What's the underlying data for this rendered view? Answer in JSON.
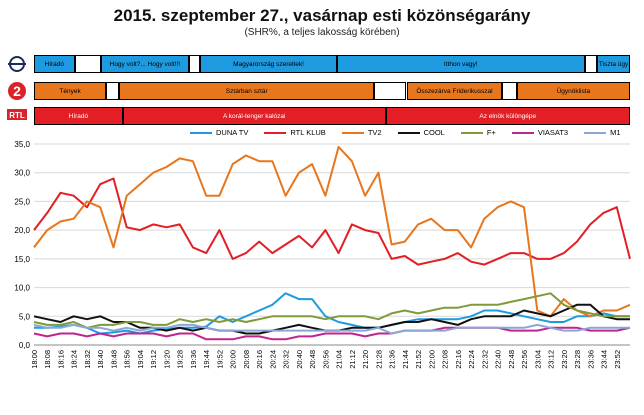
{
  "header": {
    "title": "2015. szeptember 27., vasárnap esti közönségarány",
    "subtitle": "(SHR%, a teljes lakosság körében)"
  },
  "channel_logos": [
    {
      "name": "m1-logo",
      "text": "",
      "color": "#1b2b5e"
    },
    {
      "name": "tv2-logo",
      "text": "2",
      "color": "#d8232a"
    },
    {
      "name": "rtl-klub-logo",
      "text": "RTL",
      "color": "#d8232a"
    }
  ],
  "schedules": [
    {
      "channel": "M1",
      "programs": [
        {
          "label": "Híradó",
          "color": "#1e9be0",
          "start": 0.0,
          "end": 0.068
        },
        {
          "label": "",
          "color": "#ffffff",
          "start": 0.068,
          "end": 0.112
        },
        {
          "label": "Hogy volt?... Hogy volt!!!",
          "color": "#1e9be0",
          "start": 0.112,
          "end": 0.26
        },
        {
          "label": "",
          "color": "#ffffff",
          "start": 0.26,
          "end": 0.279
        },
        {
          "label": "Magyarország szeretlek!",
          "color": "#1e9be0",
          "start": 0.279,
          "end": 0.508
        },
        {
          "label": "Itthon vagy!",
          "color": "#1e9be0",
          "start": 0.508,
          "end": 0.924
        },
        {
          "label": "",
          "color": "#ffffff",
          "start": 0.924,
          "end": 0.945
        },
        {
          "label": "Tiszta ügy",
          "color": "#1e9be0",
          "start": 0.945,
          "end": 1.0
        }
      ]
    },
    {
      "channel": "TV2",
      "programs": [
        {
          "label": "Tények",
          "color": "#e8761d",
          "start": 0.0,
          "end": 0.121
        },
        {
          "label": "",
          "color": "#ffffff",
          "start": 0.121,
          "end": 0.143
        },
        {
          "label": "Sztárban sztár",
          "color": "#e8761d",
          "start": 0.143,
          "end": 0.571
        },
        {
          "label": "",
          "color": "#ffffff",
          "start": 0.571,
          "end": 0.625
        },
        {
          "label": "Összezárva Friderikusszal",
          "color": "#e8761d",
          "start": 0.625,
          "end": 0.786
        },
        {
          "label": "",
          "color": "#ffffff",
          "start": 0.786,
          "end": 0.81
        },
        {
          "label": "Ügynöklista",
          "color": "#e8761d",
          "start": 0.81,
          "end": 1.0
        }
      ]
    },
    {
      "channel": "RTL Klub",
      "programs": [
        {
          "label": "Híradó",
          "color": "#e31e24",
          "start": 0.0,
          "end": 0.149
        },
        {
          "label": "A korál-tenger kalózai",
          "color": "#e31e24",
          "start": 0.149,
          "end": 0.59
        },
        {
          "label": "Az elnök különgépe",
          "color": "#e31e24",
          "start": 0.59,
          "end": 1.0
        }
      ]
    }
  ],
  "chart_data": {
    "type": "line",
    "ylim": [
      0,
      35
    ],
    "yticks": [
      "0,0",
      "5,0",
      "10,0",
      "15,0",
      "20,0",
      "25,0",
      "30,0",
      "35,0"
    ],
    "grid": true,
    "legend_position": "top",
    "x": [
      "18:00",
      "18:08",
      "18:16",
      "18:24",
      "18:32",
      "18:40",
      "18:48",
      "18:56",
      "19:04",
      "19:12",
      "19:20",
      "19:28",
      "19:36",
      "19:44",
      "19:52",
      "20:00",
      "20:08",
      "20:16",
      "20:24",
      "20:32",
      "20:40",
      "20:48",
      "20:56",
      "21:04",
      "21:12",
      "21:20",
      "21:28",
      "21:36",
      "21:44",
      "21:52",
      "22:00",
      "22:08",
      "22:16",
      "22:24",
      "22:32",
      "22:40",
      "22:48",
      "22:56",
      "23:04",
      "23:12",
      "23:20",
      "23:28",
      "23:36",
      "23:44",
      "23:52",
      "23:59"
    ],
    "xticks": [
      "18:00",
      "18:08",
      "18:16",
      "18:24",
      "18:32",
      "18:40",
      "18:48",
      "18:56",
      "19:04",
      "19:12",
      "19:20",
      "19:28",
      "19:36",
      "19:44",
      "19:52",
      "20:00",
      "20:08",
      "20:16",
      "20:24",
      "20:32",
      "20:40",
      "20:48",
      "20:56",
      "21:04",
      "21:12",
      "21:20",
      "21:28",
      "21:36",
      "21:44",
      "21:52",
      "22:00",
      "22:08",
      "22:16",
      "22:24",
      "22:32",
      "22:40",
      "22:48",
      "22:56",
      "23:04",
      "23:12",
      "23:20",
      "23:28",
      "23:36",
      "23:44",
      "23:52"
    ],
    "series": [
      {
        "name": "DUNA TV",
        "color": "#1e9be0",
        "values": [
          3,
          3,
          3.2,
          3.5,
          3,
          2,
          2.2,
          2.5,
          2,
          2.5,
          2.8,
          3,
          3,
          3.2,
          5,
          4,
          5,
          6,
          7,
          9,
          8,
          8,
          5,
          4,
          3.5,
          3,
          3,
          3.5,
          4,
          4.5,
          4.5,
          4.5,
          4.5,
          5,
          6,
          6,
          5.5,
          5,
          4.5,
          4,
          4,
          5,
          5,
          5.5,
          5,
          5
        ]
      },
      {
        "name": "RTL KLUB",
        "color": "#e31e24",
        "values": [
          20,
          23,
          26.5,
          26,
          24,
          28,
          29,
          20.5,
          20,
          21,
          20.5,
          21,
          17,
          16,
          20,
          15,
          16,
          18,
          16,
          17.5,
          19,
          17,
          20,
          16,
          21,
          20,
          19.5,
          15,
          15.5,
          14,
          14.5,
          15,
          16,
          14.5,
          14,
          15,
          16,
          16,
          15,
          15,
          16,
          18,
          21,
          23,
          24,
          15
        ]
      },
      {
        "name": "TV2",
        "color": "#e8761d",
        "values": [
          17,
          20,
          21.5,
          22,
          25,
          24,
          17,
          26,
          28,
          30,
          31,
          32.5,
          32,
          26,
          26,
          31.5,
          33,
          32,
          32,
          26,
          30,
          31.5,
          26,
          34.5,
          32,
          26,
          30,
          17.5,
          18,
          21,
          22,
          20,
          20,
          17,
          22,
          24,
          25,
          24,
          6,
          5,
          8,
          6,
          5,
          6,
          6,
          7
        ]
      },
      {
        "name": "COOL",
        "color": "#111111",
        "values": [
          5,
          4.5,
          4,
          5,
          4.5,
          5,
          4,
          4,
          3,
          3,
          2.5,
          3,
          2.5,
          3,
          2.5,
          2.5,
          2,
          2,
          2.5,
          3,
          3.5,
          3,
          2.5,
          2.5,
          3,
          3,
          3,
          3.5,
          4,
          4,
          4.5,
          4,
          3.5,
          4.5,
          5,
          5,
          5,
          6,
          5.5,
          5,
          6,
          7,
          7,
          5,
          4.5,
          4.5
        ]
      },
      {
        "name": "F+",
        "color": "#7f9a3a",
        "values": [
          4,
          3.5,
          3.5,
          4,
          3,
          3.5,
          3.5,
          4,
          4,
          3.5,
          3.5,
          4.5,
          4,
          4.5,
          4,
          4.5,
          4,
          4.5,
          5,
          5,
          5,
          5,
          4.5,
          5,
          5,
          5,
          4.5,
          5.5,
          6,
          5.5,
          6,
          6.5,
          6.5,
          7,
          7,
          7,
          7.5,
          8,
          8.5,
          9,
          7,
          6,
          5.5,
          5,
          5,
          5
        ]
      },
      {
        "name": "VIASAT3",
        "color": "#c0248f",
        "values": [
          2,
          1.5,
          2,
          2,
          1.5,
          2,
          1.5,
          2,
          2,
          2,
          1.5,
          2,
          2,
          1,
          1,
          1,
          1.5,
          1.5,
          1,
          1,
          1.5,
          1.5,
          2,
          2,
          2,
          1.5,
          2,
          2,
          2.5,
          2.5,
          2.5,
          3,
          3,
          3,
          3,
          3,
          2.5,
          2.5,
          2.5,
          3,
          3,
          3,
          2.5,
          2.5,
          2.5,
          3
        ]
      },
      {
        "name": "M1",
        "color": "#8aa7d6",
        "values": [
          3.5,
          3,
          3,
          3.5,
          3,
          3,
          2.5,
          3,
          2.5,
          3,
          3,
          3.5,
          3.5,
          3,
          2.5,
          2.5,
          2.5,
          2.5,
          2.5,
          2.5,
          2.5,
          2.5,
          2.5,
          2.5,
          2.5,
          2.5,
          3,
          2,
          2.5,
          2.5,
          2.5,
          2.5,
          3,
          3,
          3,
          3,
          3,
          3,
          3.5,
          3,
          2.5,
          2.5,
          3,
          3,
          3,
          3
        ]
      }
    ]
  }
}
